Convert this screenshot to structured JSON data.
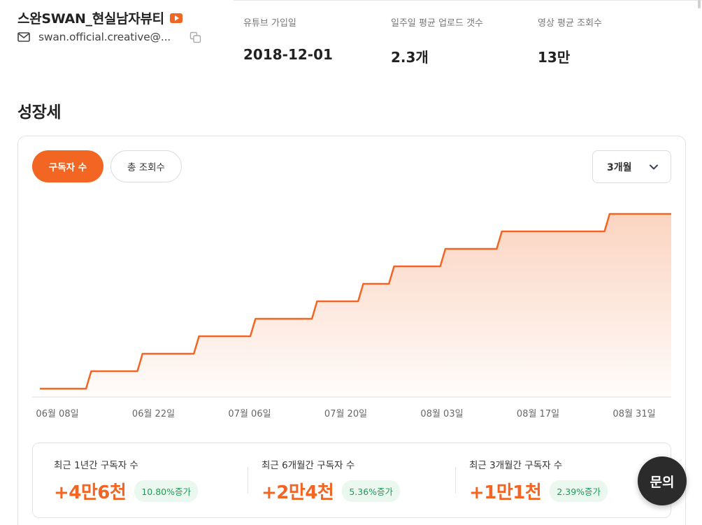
{
  "channel": {
    "name": "스완SWAN_현실남자뷰티",
    "email": "swan.official.creative@...",
    "icons": {
      "platform": "youtube-icon",
      "mail": "mail-icon",
      "copy": "copy-icon"
    },
    "accent_color": "#f26522"
  },
  "stats": [
    {
      "label": "유튜브 가입일",
      "value": "2018-12-01"
    },
    {
      "label": "일주일 평균 업로드 갯수",
      "value": "2.3개"
    },
    {
      "label": "영상 평균 조회수",
      "value": "13만"
    }
  ],
  "section_title": "성장세",
  "tabs": [
    {
      "label": "구독자 수",
      "active": true
    },
    {
      "label": "총 조회수",
      "active": false
    }
  ],
  "period_select": {
    "selected": "3개월",
    "icon": "chevron-down-icon"
  },
  "chart_data": {
    "type": "line",
    "style": "step-area",
    "title": "",
    "xlabel": "",
    "ylabel": "",
    "x_tick_labels": [
      "06월 08일",
      "06월 22일",
      "07월 06일",
      "07월 20일",
      "08월 03일",
      "08월 17일",
      "08월 31일"
    ],
    "y_axis_visible": false,
    "grid": false,
    "line_color": "#f26522",
    "series": [
      {
        "values": [
          0,
          0,
          0,
          0,
          0,
          0,
          0,
          0,
          0,
          0,
          1,
          1,
          1,
          1,
          1,
          1,
          1,
          1,
          1,
          1,
          2,
          2,
          2,
          2,
          2,
          2,
          2,
          2,
          2,
          2,
          2,
          3,
          3,
          3,
          3,
          3,
          3,
          3,
          3,
          3,
          3,
          3,
          4,
          4,
          4,
          4,
          4,
          4,
          4,
          4,
          4,
          4,
          4,
          4,
          5,
          5,
          5,
          5,
          5,
          5,
          5,
          5,
          5,
          6,
          6,
          6,
          6,
          6,
          6,
          7,
          7,
          7,
          7,
          7,
          7,
          7,
          7,
          7,
          7,
          8,
          8,
          8,
          8,
          8,
          8,
          8,
          8,
          8,
          8,
          8,
          9,
          9,
          9,
          9,
          9,
          9,
          9,
          9,
          9,
          9,
          9,
          9,
          9,
          9,
          9,
          9,
          9,
          9,
          9,
          9,
          9,
          10,
          10,
          10,
          10,
          10,
          10,
          10,
          10,
          10,
          10,
          10,
          10,
          10
        ]
      }
    ]
  },
  "summary": [
    {
      "label": "최근 1년간 구독자 수",
      "value": "+4만6천",
      "badge": "10.80%증가"
    },
    {
      "label": "최근 6개월간 구독자 수",
      "value": "+2만4천",
      "badge": "5.36%증가"
    },
    {
      "label": "최근 3개월간 구독자 수",
      "value": "+1만1천",
      "badge": "2.39%증가"
    }
  ],
  "inquiry_button": {
    "label": "문의"
  }
}
